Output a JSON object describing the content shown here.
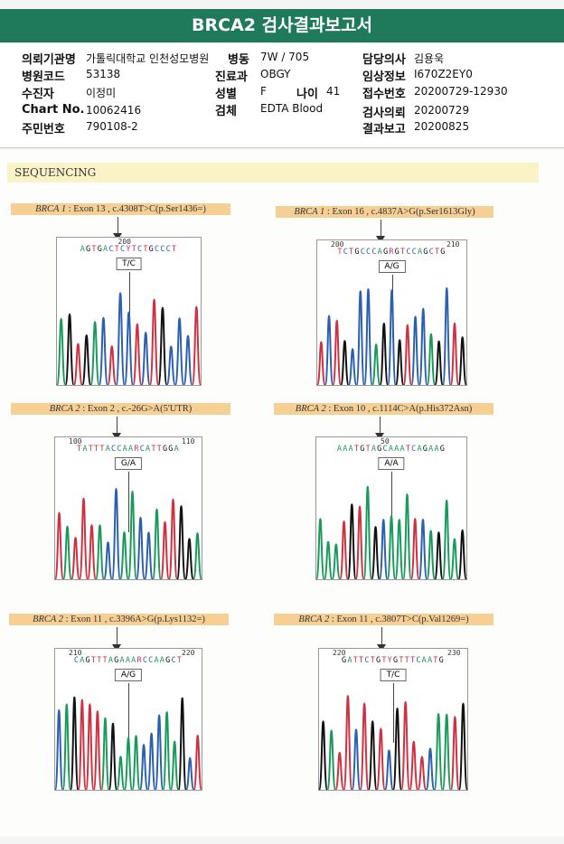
{
  "title": "BRCA2 검사결과보고서",
  "info": {
    "req_inst_label": "의뢰기관명",
    "req_inst": "가톨릭대학교 인천성모병원",
    "ward_label": "병동",
    "ward": "7W / 705",
    "doctor_label": "담당의사",
    "doctor": "김용욱",
    "hosp_code_label": "병원코드",
    "hosp_code": "53138",
    "dept_label": "진료과",
    "dept": "OBGY",
    "clinical_label": "임상정보",
    "clinical": "I670Z2EY0",
    "patient_label": "수진자",
    "patient": "이정미",
    "sex_label": "성별",
    "sex": "F",
    "age_label": "나이",
    "age": "41",
    "receipt_label": "접수번호",
    "receipt": "20200729-12930",
    "chart_label": "Chart No.",
    "chart": "10062416",
    "specimen_label": "검체",
    "specimen": "EDTA Blood",
    "request_date_label": "검사의뢰",
    "request_date": "20200729",
    "rrn_label": "주민번호",
    "rrn": "790108-2",
    "report_date_label": "결과보고",
    "report_date": "20200825"
  },
  "section": "SEQUENCING",
  "colors": {
    "A": "#1a9a5a",
    "C": "#2b5fb0",
    "G": "#111111",
    "T": "#d0303f"
  },
  "panels": [
    {
      "gene": "BRCA 1",
      "desc": ": Exon 13 , c.4308T>C(p.Ser1436=)",
      "seq": "AGTGACTCYTCTGCCCT",
      "nums": [
        "200"
      ],
      "call": "T/C"
    },
    {
      "gene": "BRCA 1",
      "desc": ": Exon 16 , c.4837A>G(p.Ser1613Gly)",
      "seq": "TCTGCCCAGRGTCCAGCTG",
      "nums": [
        "200",
        "210"
      ],
      "call": "A/G"
    },
    {
      "gene": "BRCA 2",
      "desc": ": Exon 2 , c.-26G>A(5'UTR)",
      "seq": "TATTTACCAARCATTGGA",
      "nums": [
        "100",
        "110"
      ],
      "call": "G/A"
    },
    {
      "gene": "BRCA 2",
      "desc": ": Exon 10 , c.1114C>A(p.His372Asn)",
      "seq": "AAATGTAGCAAATCAGAAG",
      "nums": [
        "50"
      ],
      "call": "A/A"
    },
    {
      "gene": "BRCA 2",
      "desc": ": Exon 11 , c.3396A>G(p.Lys1132=)",
      "seq": "CAGTTTAGAAARCCAAGCT",
      "nums": [
        "210",
        "220"
      ],
      "call": "A/G"
    },
    {
      "gene": "BRCA 2",
      "desc": ": Exon 11 , c.3807T>C(p.Val1269=)",
      "seq": "GATTCTGTYGTTTCAATG",
      "nums": [
        "220",
        "230"
      ],
      "call": "T/C"
    }
  ]
}
